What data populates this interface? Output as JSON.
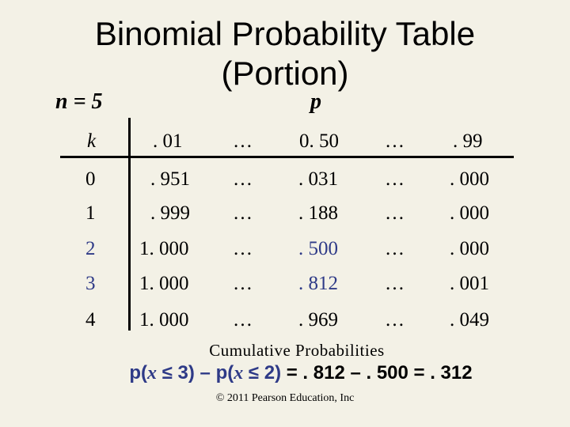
{
  "title_line1": "Binomial Probability Table",
  "title_line2": "(Portion)",
  "n_label": "n = 5",
  "p_label": "p",
  "table": {
    "header": [
      "k",
      ". 01",
      "…",
      "0. 50",
      "…",
      ". 99"
    ],
    "rows": [
      [
        "0",
        ". 951",
        "…",
        ". 031",
        "…",
        ". 000"
      ],
      [
        "1",
        ". 999",
        "…",
        ". 188",
        "…",
        ". 000"
      ],
      [
        "2",
        "1. 000",
        "…",
        ". 500",
        "…",
        ". 000"
      ],
      [
        "3",
        "1. 000",
        "…",
        ". 812",
        "…",
        ". 001"
      ],
      [
        "4",
        "1. 000",
        "…",
        ". 969",
        "…",
        ". 049"
      ]
    ],
    "highlighted_rows": [
      2,
      3
    ]
  },
  "caption": "Cumulative Probabilities",
  "formula": {
    "part1": "p(",
    "x1": "x",
    "part2": " ≤ 3) – p(",
    "x2": "x",
    "part3": " ≤ 2)",
    "part4": " = . 812 – . 500 = . 312"
  },
  "copyright": "© 2011 Pearson Education, Inc",
  "colors": {
    "highlight": "#2e3a87",
    "background": "#f3f1e6"
  }
}
